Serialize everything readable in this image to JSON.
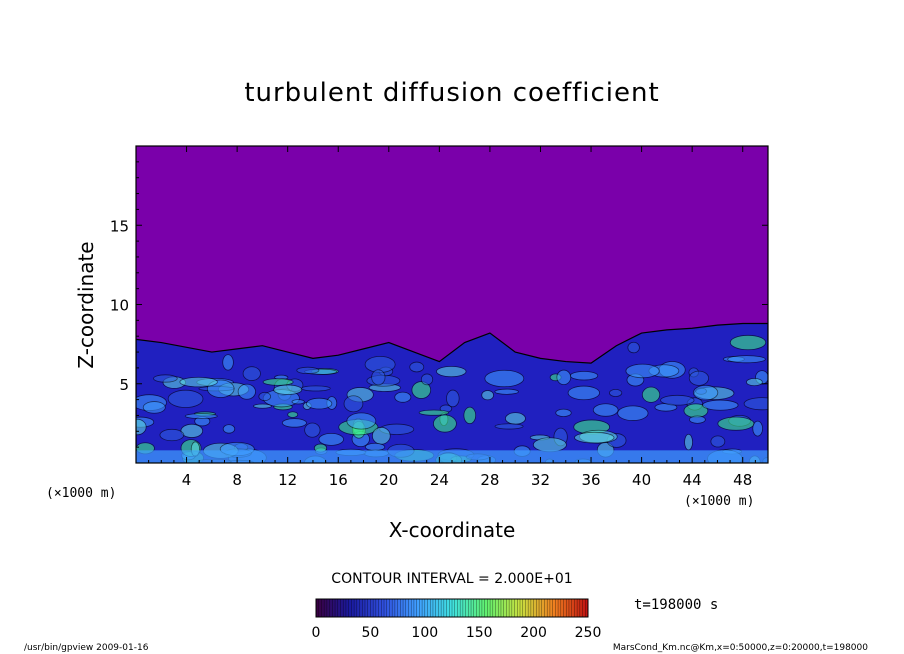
{
  "chart_data": {
    "type": "heatmap",
    "title": "turbulent diffusion coefficient",
    "xlabel": "X-coordinate",
    "ylabel": "Z-coordinate",
    "x_unit_left": "(×1000 m)",
    "x_unit_right": "(×1000 m)",
    "xlim": [
      0,
      50
    ],
    "ylim": [
      0,
      20
    ],
    "x_ticks": [
      4,
      8,
      12,
      16,
      20,
      24,
      28,
      32,
      36,
      40,
      44,
      48
    ],
    "y_ticks": [
      5,
      10,
      15
    ],
    "grid": false,
    "contour_interval_text": "CONTOUR INTERVAL = 2.000E+01",
    "time_text": "t=198000 s",
    "colorbar": {
      "min": 0,
      "max": 250,
      "ticks": [
        0,
        50,
        100,
        150,
        200,
        250
      ],
      "colors": [
        "#3a0040",
        "#1a1aa0",
        "#3050e0",
        "#40a0ff",
        "#40e0e0",
        "#60f070",
        "#c8e040",
        "#f08020",
        "#c01010"
      ]
    },
    "colors": {
      "background_region": "#7a00aa",
      "low": "#2020c0",
      "mid": "#40a0ff",
      "high": "#40ff80",
      "contour": "#000000"
    },
    "boundary_layer_top": [
      [
        0,
        7.8
      ],
      [
        2,
        7.6
      ],
      [
        4,
        7.3
      ],
      [
        6,
        7.0
      ],
      [
        8,
        7.2
      ],
      [
        10,
        7.4
      ],
      [
        12,
        7.0
      ],
      [
        14,
        6.6
      ],
      [
        16,
        6.8
      ],
      [
        18,
        7.2
      ],
      [
        20,
        7.6
      ],
      [
        22,
        7.0
      ],
      [
        24,
        6.4
      ],
      [
        26,
        7.6
      ],
      [
        28,
        8.2
      ],
      [
        30,
        7.0
      ],
      [
        32,
        6.6
      ],
      [
        34,
        6.4
      ],
      [
        36,
        6.3
      ],
      [
        38,
        7.4
      ],
      [
        40,
        8.2
      ],
      [
        42,
        8.4
      ],
      [
        44,
        8.5
      ],
      [
        46,
        8.7
      ],
      [
        48,
        8.8
      ],
      [
        50,
        8.8
      ]
    ]
  },
  "footer": {
    "left": "/usr/bin/gpview   2009-01-16",
    "right": "MarsCond_Km.nc@Km,x=0:50000,z=0:20000,t=198000"
  }
}
